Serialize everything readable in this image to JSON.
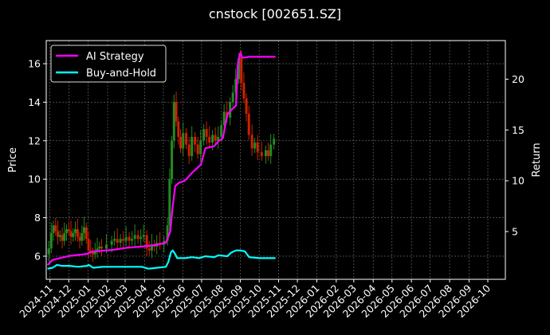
{
  "chart_data": {
    "type": "line",
    "title": "cnstock [002651.SZ]",
    "ylabel": "Price",
    "y2label": "Return",
    "ylim": [
      4.8,
      17.2
    ],
    "y2lim": [
      0.3,
      23.8
    ],
    "yticks": [
      6,
      8,
      10,
      12,
      14,
      16
    ],
    "y2ticks": [
      5,
      10,
      15,
      20
    ],
    "xlim": [
      "2024-10-26",
      "2026-10-29"
    ],
    "xticks": [
      "2024-11",
      "2024-12",
      "2025-01",
      "2025-02",
      "2025-03",
      "2025-04",
      "2025-05",
      "2025-06",
      "2025-07",
      "2025-08",
      "2025-09",
      "2025-10",
      "2025-11",
      "2025-12",
      "2026-01",
      "2026-02",
      "2026-03",
      "2026-04",
      "2026-05",
      "2026-06",
      "2026-07",
      "2026-08",
      "2026-09",
      "2026-10"
    ],
    "grid": true,
    "legend_position": "top-left",
    "candlestick_up_color": "#228b22",
    "candlestick_down_color": "#cc2200",
    "candlestick_close": [
      [
        "2024-10-28",
        6.1
      ],
      [
        "2024-11-01",
        6.4
      ],
      [
        "2024-11-05",
        7.2
      ],
      [
        "2024-11-08",
        7.6
      ],
      [
        "2024-11-12",
        7.3
      ],
      [
        "2024-11-15",
        7.0
      ],
      [
        "2024-11-19",
        7.1
      ],
      [
        "2024-11-22",
        6.8
      ],
      [
        "2024-11-26",
        7.2
      ],
      [
        "2024-11-29",
        7.4
      ],
      [
        "2024-12-03",
        7.3
      ],
      [
        "2024-12-06",
        7.0
      ],
      [
        "2024-12-10",
        7.2
      ],
      [
        "2024-12-13",
        7.4
      ],
      [
        "2024-12-17",
        7.0
      ],
      [
        "2024-12-20",
        6.8
      ],
      [
        "2024-12-24",
        7.2
      ],
      [
        "2024-12-27",
        7.5
      ],
      [
        "2024-12-31",
        6.9
      ],
      [
        "2025-01-03",
        6.3
      ],
      [
        "2025-01-07",
        6.2
      ],
      [
        "2025-01-10",
        6.1
      ],
      [
        "2025-01-14",
        6.3
      ],
      [
        "2025-01-17",
        6.4
      ],
      [
        "2025-01-21",
        6.5
      ],
      [
        "2025-01-24",
        6.4
      ],
      [
        "2025-02-05",
        6.6
      ],
      [
        "2025-02-10",
        6.8
      ],
      [
        "2025-02-14",
        6.9
      ],
      [
        "2025-02-19",
        6.7
      ],
      [
        "2025-02-24",
        6.9
      ],
      [
        "2025-02-28",
        6.8
      ],
      [
        "2025-03-05",
        7.0
      ],
      [
        "2025-03-10",
        6.8
      ],
      [
        "2025-03-14",
        6.9
      ],
      [
        "2025-03-19",
        7.1
      ],
      [
        "2025-03-24",
        6.9
      ],
      [
        "2025-03-28",
        7.0
      ],
      [
        "2025-04-02",
        7.1
      ],
      [
        "2025-04-07",
        6.4
      ],
      [
        "2025-04-10",
        6.3
      ],
      [
        "2025-04-15",
        6.6
      ],
      [
        "2025-04-18",
        6.5
      ],
      [
        "2025-04-23",
        6.7
      ],
      [
        "2025-04-28",
        6.6
      ],
      [
        "2025-05-06",
        6.8
      ],
      [
        "2025-05-09",
        7.6
      ],
      [
        "2025-05-13",
        10.0
      ],
      [
        "2025-05-16",
        12.0
      ],
      [
        "2025-05-20",
        14.0
      ],
      [
        "2025-05-23",
        13.0
      ],
      [
        "2025-05-27",
        12.2
      ],
      [
        "2025-05-30",
        11.6
      ],
      [
        "2025-06-04",
        12.4
      ],
      [
        "2025-06-09",
        11.8
      ],
      [
        "2025-06-13",
        11.2
      ],
      [
        "2025-06-18",
        12.2
      ],
      [
        "2025-06-23",
        11.8
      ],
      [
        "2025-06-27",
        11.3
      ],
      [
        "2025-07-02",
        12.0
      ],
      [
        "2025-07-07",
        12.6
      ],
      [
        "2025-07-11",
        12.2
      ],
      [
        "2025-07-16",
        11.9
      ],
      [
        "2025-07-21",
        12.3
      ],
      [
        "2025-07-25",
        12.0
      ],
      [
        "2025-07-30",
        12.2
      ],
      [
        "2025-08-04",
        12.8
      ],
      [
        "2025-08-08",
        13.5
      ],
      [
        "2025-08-13",
        13.2
      ],
      [
        "2025-08-18",
        14.0
      ],
      [
        "2025-08-22",
        14.5
      ],
      [
        "2025-08-27",
        15.2
      ],
      [
        "2025-09-01",
        16.3
      ],
      [
        "2025-09-04",
        15.0
      ],
      [
        "2025-09-09",
        14.2
      ],
      [
        "2025-09-12",
        13.4
      ],
      [
        "2025-09-17",
        12.3
      ],
      [
        "2025-09-22",
        11.6
      ],
      [
        "2025-09-26",
        11.9
      ],
      [
        "2025-10-01",
        11.4
      ],
      [
        "2025-10-09",
        11.2
      ],
      [
        "2025-10-14",
        11.5
      ],
      [
        "2025-10-17",
        11.2
      ],
      [
        "2025-10-22",
        11.8
      ],
      [
        "2025-10-27",
        12.1
      ]
    ],
    "series": [
      {
        "name": "AI Strategy",
        "axis": "right",
        "color": "#ff00ff",
        "points": [
          [
            "2024-10-28",
            1.7
          ],
          [
            "2024-11-05",
            2.2
          ],
          [
            "2024-11-18",
            2.4
          ],
          [
            "2024-12-02",
            2.6
          ],
          [
            "2024-12-16",
            2.7
          ],
          [
            "2024-12-30",
            2.8
          ],
          [
            "2025-01-06",
            3.0
          ],
          [
            "2025-01-20",
            3.1
          ],
          [
            "2025-02-10",
            3.2
          ],
          [
            "2025-03-03",
            3.4
          ],
          [
            "2025-03-24",
            3.5
          ],
          [
            "2025-04-07",
            3.6
          ],
          [
            "2025-04-21",
            3.7
          ],
          [
            "2025-05-05",
            3.9
          ],
          [
            "2025-05-12",
            5.0
          ],
          [
            "2025-05-16",
            7.5
          ],
          [
            "2025-05-20",
            9.5
          ],
          [
            "2025-05-26",
            9.8
          ],
          [
            "2025-06-04",
            10.0
          ],
          [
            "2025-06-16",
            10.8
          ],
          [
            "2025-06-23",
            11.2
          ],
          [
            "2025-06-30",
            11.6
          ],
          [
            "2025-07-07",
            13.2
          ],
          [
            "2025-07-21",
            13.4
          ],
          [
            "2025-07-28",
            13.9
          ],
          [
            "2025-08-04",
            14.2
          ],
          [
            "2025-08-11",
            16.5
          ],
          [
            "2025-08-18",
            17.0
          ],
          [
            "2025-08-25",
            17.4
          ],
          [
            "2025-08-28",
            21.6
          ],
          [
            "2025-09-01",
            22.6
          ],
          [
            "2025-09-04",
            22.1
          ],
          [
            "2025-09-15",
            22.2
          ],
          [
            "2025-10-01",
            22.2
          ],
          [
            "2025-10-27",
            22.2
          ]
        ]
      },
      {
        "name": "Buy-and-Hold",
        "axis": "left",
        "color": "#00ffff",
        "points": [
          [
            "2024-10-28",
            5.35
          ],
          [
            "2024-11-05",
            5.4
          ],
          [
            "2024-11-12",
            5.55
          ],
          [
            "2024-11-20",
            5.5
          ],
          [
            "2024-12-02",
            5.5
          ],
          [
            "2024-12-16",
            5.45
          ],
          [
            "2024-12-30",
            5.5
          ],
          [
            "2025-01-02",
            5.55
          ],
          [
            "2025-01-09",
            5.4
          ],
          [
            "2025-01-24",
            5.45
          ],
          [
            "2025-02-14",
            5.45
          ],
          [
            "2025-03-07",
            5.45
          ],
          [
            "2025-03-28",
            5.45
          ],
          [
            "2025-04-07",
            5.35
          ],
          [
            "2025-04-21",
            5.4
          ],
          [
            "2025-05-05",
            5.45
          ],
          [
            "2025-05-09",
            5.7
          ],
          [
            "2025-05-13",
            6.2
          ],
          [
            "2025-05-16",
            6.3
          ],
          [
            "2025-05-20",
            6.1
          ],
          [
            "2025-05-23",
            5.9
          ],
          [
            "2025-06-04",
            5.9
          ],
          [
            "2025-06-16",
            5.95
          ],
          [
            "2025-06-27",
            5.9
          ],
          [
            "2025-07-07",
            6.0
          ],
          [
            "2025-07-21",
            5.95
          ],
          [
            "2025-07-28",
            6.05
          ],
          [
            "2025-08-11",
            6.0
          ],
          [
            "2025-08-18",
            6.2
          ],
          [
            "2025-08-25",
            6.3
          ],
          [
            "2025-09-01",
            6.3
          ],
          [
            "2025-09-08",
            6.25
          ],
          [
            "2025-09-15",
            5.95
          ],
          [
            "2025-10-01",
            5.9
          ],
          [
            "2025-10-27",
            5.9
          ]
        ]
      }
    ]
  }
}
